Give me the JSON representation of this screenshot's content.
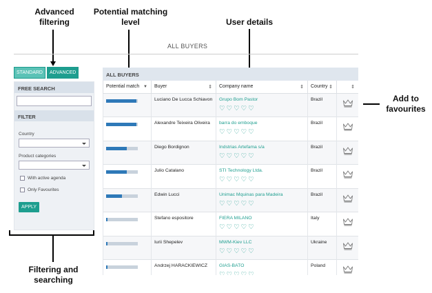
{
  "annotations": {
    "advanced_filtering": [
      "Advanced",
      "filtering"
    ],
    "potential_matching_level": [
      "Potential matching",
      "level"
    ],
    "user_details": "User details",
    "add_to_favourites": [
      "Add to",
      "favourites"
    ],
    "filtering_and_searching": [
      "Filtering and",
      "searching"
    ]
  },
  "page": {
    "title": "ALL BUYERS"
  },
  "tabs": {
    "standard": "STANDARD",
    "advanced": "ADVANCED"
  },
  "sidebar": {
    "free_search_label": "FREE SEARCH",
    "filter_label": "FILTER",
    "country_label": "Country",
    "product_categories_label": "Product categories",
    "with_active_agenda": "With active agenda",
    "only_favourites": "Only Favourites",
    "apply_label": "APPLY"
  },
  "main": {
    "header": "ALL BUYERS",
    "columns": {
      "match": "Potential match",
      "buyer": "Buyer",
      "company": "Company name",
      "country": "Country"
    },
    "rows": [
      {
        "match": 0.95,
        "buyer": "Luciano De Lucca Schiavon",
        "company": "Grupo Bom Pastor",
        "country": "Brazil",
        "hearts": 5
      },
      {
        "match": 0.95,
        "buyer": "Alexandre Teixeira Oliveira",
        "company": "barra do emboque",
        "country": "Brazil",
        "hearts": 5
      },
      {
        "match": 0.65,
        "buyer": "Diego Bordignon",
        "company": "Indstrias Artefama s/a",
        "country": "Brazil",
        "hearts": 5
      },
      {
        "match": 0.65,
        "buyer": "Julio Catalano",
        "company": "STI Technology Ltda.",
        "country": "Brazil",
        "hearts": 5
      },
      {
        "match": 0.5,
        "buyer": "Edwin Lucci",
        "company": "Unimac Mquinas para Madeira",
        "country": "Brazil",
        "hearts": 5
      },
      {
        "match": 0.05,
        "buyer": "Stefano espositore",
        "company": "FIERA MILANO",
        "country": "Italy",
        "hearts": 5
      },
      {
        "match": 0.05,
        "buyer": "Iurii Shepelev",
        "company": "MWM-Kiev LLC",
        "country": "Ukraine",
        "hearts": 5
      },
      {
        "match": 0.05,
        "buyer": "Andrzej HARACKIEWICZ",
        "company": "GIAS-BATO",
        "country": "Poland",
        "hearts": 5
      }
    ]
  },
  "colors": {
    "accent": "#1e9e8f",
    "match_bar": "#2e79b8",
    "match_track": "#c8d2dc"
  },
  "icons": {
    "favourite": "crown-icon",
    "rating": "heart-icon",
    "sort": "sort-icon"
  }
}
